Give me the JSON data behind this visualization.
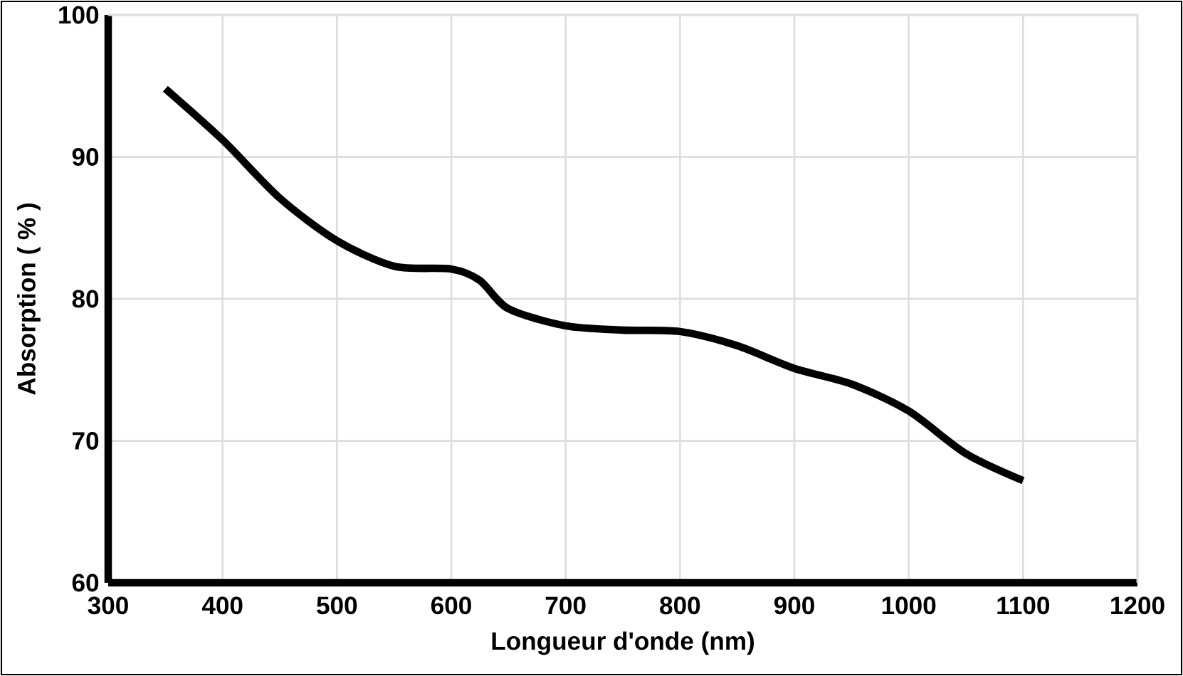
{
  "chart_data": {
    "type": "line",
    "xlabel": "Longueur d'onde (nm)",
    "ylabel": "Absorption ( % )",
    "x": [
      350,
      400,
      450,
      500,
      550,
      600,
      625,
      650,
      700,
      750,
      800,
      850,
      900,
      950,
      1000,
      1050,
      1100
    ],
    "series": [
      {
        "color": "#000000",
        "values": [
          94.8,
          91.2,
          87.1,
          84.1,
          82.3,
          82.1,
          81.3,
          79.3,
          78.1,
          77.8,
          77.7,
          76.7,
          75.1,
          74.0,
          72.1,
          69.1,
          67.2
        ]
      }
    ],
    "xlim": [
      300,
      1200
    ],
    "ylim": [
      60,
      100
    ],
    "xticks": [
      300,
      400,
      500,
      600,
      700,
      800,
      900,
      1000,
      1100,
      1200
    ],
    "yticks": [
      60,
      70,
      80,
      90,
      100
    ],
    "grid": true,
    "marker": "none",
    "line_style": "solid"
  }
}
